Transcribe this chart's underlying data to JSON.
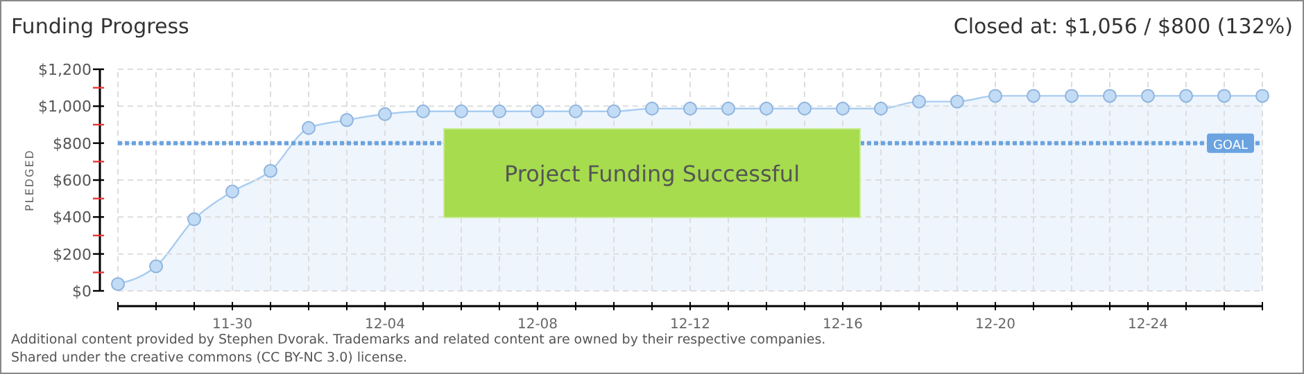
{
  "chart_data": {
    "type": "area",
    "title": "Funding Progress",
    "subtitle": "Closed at: $1,056 / $800 (132%)",
    "ylabel": "PLEDGED",
    "categories": [
      null,
      null,
      null,
      "11-30",
      null,
      null,
      null,
      "12-04",
      null,
      null,
      null,
      "12-08",
      null,
      null,
      null,
      "12-12",
      null,
      null,
      null,
      "12-16",
      null,
      null,
      null,
      "12-20",
      null,
      null,
      null,
      "12-24",
      null,
      null,
      null
    ],
    "series": [
      {
        "color": "#a9cdf0",
        "values": [
          37,
          133,
          388,
          538,
          650,
          882,
          925,
          957,
          972,
          972,
          972,
          972,
          972,
          972,
          987,
          987,
          987,
          987,
          987,
          987,
          987,
          1025,
          1025,
          1056,
          1056,
          1056,
          1056,
          1056,
          1056,
          1056,
          1056
        ]
      }
    ],
    "ylim": [
      0,
      1200
    ],
    "yticks": [
      {
        "value": 0,
        "label": "$0"
      },
      {
        "value": 100,
        "label": null
      },
      {
        "value": 200,
        "label": "$200"
      },
      {
        "value": 300,
        "label": null
      },
      {
        "value": 400,
        "label": "$400"
      },
      {
        "value": 500,
        "label": null
      },
      {
        "value": 600,
        "label": "$600"
      },
      {
        "value": 700,
        "label": null
      },
      {
        "value": 800,
        "label": "$800"
      },
      {
        "value": 900,
        "label": null
      },
      {
        "value": 1000,
        "label": "$1,000"
      },
      {
        "value": 1100,
        "label": null
      },
      {
        "value": 1200,
        "label": "$1,200"
      }
    ],
    "grid": true,
    "marker": "circle",
    "ref_lines": [
      {
        "axis": "y",
        "value": 800,
        "label": "GOAL",
        "color": "#6aa3e0",
        "line_style": "dotted"
      }
    ],
    "annotations": [
      "Project Funding Successful",
      "Additional content provided by Stephen Dvorak. Trademarks and related content are owned by their respective companies.",
      "Shared under the creative commons (CC BY-NC 3.0) license."
    ]
  }
}
